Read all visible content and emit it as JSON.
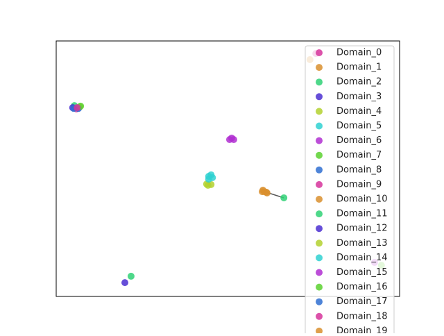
{
  "chart_data": {
    "type": "scatter",
    "xlim": [
      0,
      1
    ],
    "ylim": [
      0,
      1
    ],
    "legend": "upper right",
    "series": [
      {
        "name": "Domain_0",
        "color": "#d6349b",
        "x": [
          0.059
        ],
        "y": [
          0.734
        ]
      },
      {
        "name": "Domain_1",
        "color": "#d98f2e",
        "x": [
          0.739,
          0.6,
          0.612
        ],
        "y": [
          0.927,
          0.41,
          0.408
        ]
      },
      {
        "name": "Domain_2",
        "color": "#2fd175",
        "x": [
          0.053
        ],
        "y": [
          0.747
        ]
      },
      {
        "name": "Domain_3",
        "color": "#4b2fd1",
        "x": [
          0.048
        ],
        "y": [
          0.739
        ]
      },
      {
        "name": "Domain_4",
        "color": "#b3d12f",
        "x": [
          0.069,
          0.438,
          0.451
        ],
        "y": [
          0.742,
          0.44,
          0.438
        ]
      },
      {
        "name": "Domain_5",
        "color": "#2fd1d1",
        "x": [
          0.444,
          0.455
        ],
        "y": [
          0.47,
          0.465
        ]
      },
      {
        "name": "Domain_6",
        "color": "#b02fd1",
        "x": [
          0.505,
          0.517
        ],
        "y": [
          0.614,
          0.614
        ]
      },
      {
        "name": "Domain_7",
        "color": "#5bd12f",
        "x": [
          0.947
        ],
        "y": [
          0.122
        ]
      },
      {
        "name": "Domain_8",
        "color": "#2f6fd1",
        "x": [
          0.065
        ],
        "y": [
          0.736
        ]
      },
      {
        "name": "Domain_9",
        "color": "#d6349b",
        "x": [
          0.756
        ],
        "y": [
          0.951
        ]
      },
      {
        "name": "Domain_10",
        "color": "#d98f2e",
        "x": [
          0.606,
          0.614
        ],
        "y": [
          0.41,
          0.405
        ]
      },
      {
        "name": "Domain_11",
        "color": "#2fd175",
        "x": [
          0.663,
          0.218
        ],
        "y": [
          0.386,
          0.079
        ]
      },
      {
        "name": "Domain_12",
        "color": "#4b2fd1",
        "x": [
          0.2
        ],
        "y": [
          0.054
        ]
      },
      {
        "name": "Domain_13",
        "color": "#b3d12f",
        "x": [
          0.442
        ],
        "y": [
          0.435
        ]
      },
      {
        "name": "Domain_14",
        "color": "#2fd1d1",
        "x": [
          0.451,
          0.444
        ],
        "y": [
          0.476,
          0.459
        ]
      },
      {
        "name": "Domain_15",
        "color": "#b02fd1",
        "x": [
          0.511,
          0.927
        ],
        "y": [
          0.62,
          0.133
        ]
      },
      {
        "name": "Domain_16",
        "color": "#5bd12f",
        "x": [
          0.071
        ],
        "y": [
          0.745
        ]
      },
      {
        "name": "Domain_17",
        "color": "#2f6fd1",
        "x": [
          0.051
        ],
        "y": [
          0.736
        ]
      },
      {
        "name": "Domain_18",
        "color": "#d6349b",
        "x": [
          0.061
        ],
        "y": [
          0.739
        ]
      },
      {
        "name": "Domain_19",
        "color": "#d98f2e",
        "x": [
          0.602
        ],
        "y": [
          0.416
        ]
      }
    ]
  }
}
